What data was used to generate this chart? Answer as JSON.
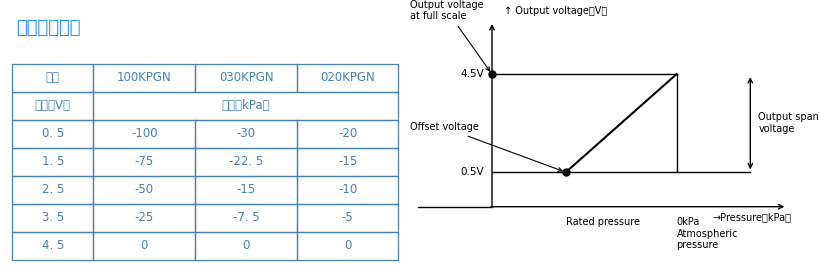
{
  "title": "输出对应曲线",
  "title_color": "#1E90FF",
  "title_fontsize": 13,
  "table_header_row1": [
    "型号",
    "100KPGN",
    "030KPGN",
    "020KPGN"
  ],
  "table_header_row2_col0": "电压（V）",
  "table_header_row2_merged": "压力（kPa）",
  "table_data": [
    [
      "0. 5",
      "-100",
      "-30",
      "-20"
    ],
    [
      "1. 5",
      "-75",
      "-22. 5",
      "-15"
    ],
    [
      "2. 5",
      "-50",
      "-15",
      "-10"
    ],
    [
      "3. 5",
      "-25",
      "-7. 5",
      "-5"
    ],
    [
      "4. 5",
      "0",
      "0",
      "0"
    ]
  ],
  "table_text_color": "#4682B4",
  "table_border_color": "#4682B4",
  "graph_ylabel": "↑ Output voltage（V）",
  "graph_xlabel": "→Pressure（kPa）",
  "graph_45v_label": "4.5V",
  "graph_05v_label": "0.5V",
  "graph_fullscale_label": "Output voltage\nat full scale",
  "graph_offset_label": "Offset voltage",
  "graph_rated_label": "Rated pressure",
  "graph_atm_label": "0kPa\nAtmospheric\npressure",
  "graph_span_label": "Output span\nvoltage",
  "line_color": "#000000",
  "dot_color": "#000000",
  "bg_color": "#ffffff"
}
